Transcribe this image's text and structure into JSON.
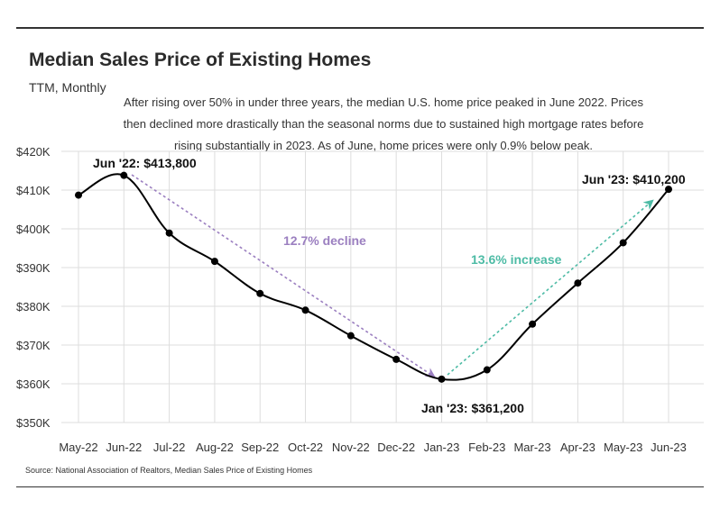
{
  "header": {
    "title": "Median Sales Price of Existing Homes",
    "subtitle": "TTM, Monthly",
    "description": "After rising over 50% in under three years, the median U.S. home price peaked in June 2022. Prices then declined more drastically than the seasonal norms due to sustained high mortgage rates before rising substantially in 2023. As of June, home prices were only 0.9% below peak."
  },
  "source": "Source:  National Association of Realtors, Median Sales Price of Existing Homes",
  "colors": {
    "line": "#000000",
    "decline": "#9b7fc0",
    "increase": "#4dbba5",
    "grid": "#dddddd"
  },
  "chart_data": {
    "type": "line",
    "title": "Median Sales Price of Existing Homes",
    "subtitle": "TTM, Monthly",
    "categories": [
      "May-22",
      "Jun-22",
      "Jul-22",
      "Aug-22",
      "Sep-22",
      "Oct-22",
      "Nov-22",
      "Dec-22",
      "Jan-23",
      "Feb-23",
      "Mar-23",
      "Apr-23",
      "May-23",
      "Jun-23"
    ],
    "series": [
      {
        "values": [
          408700,
          413800,
          398900,
          391600,
          383300,
          379000,
          372400,
          366300,
          361200,
          363600,
          375400,
          386000,
          396400,
          410200
        ]
      }
    ],
    "ylim": [
      350000,
      420000
    ],
    "yticks": [
      350000,
      360000,
      370000,
      380000,
      390000,
      400000,
      410000,
      420000
    ],
    "ytick_labels": [
      "$350K",
      "$360K",
      "$370K",
      "$380K",
      "$390K",
      "$400K",
      "$410K",
      "$420K"
    ],
    "grid": true,
    "annotations": {
      "peak_label": "Jun '22: $413,800",
      "trough_label": "Jan '23: $361,200",
      "latest_label": "Jun '23: $410,200",
      "decline_label": "12.7% decline",
      "increase_label": "13.6% increase"
    }
  }
}
